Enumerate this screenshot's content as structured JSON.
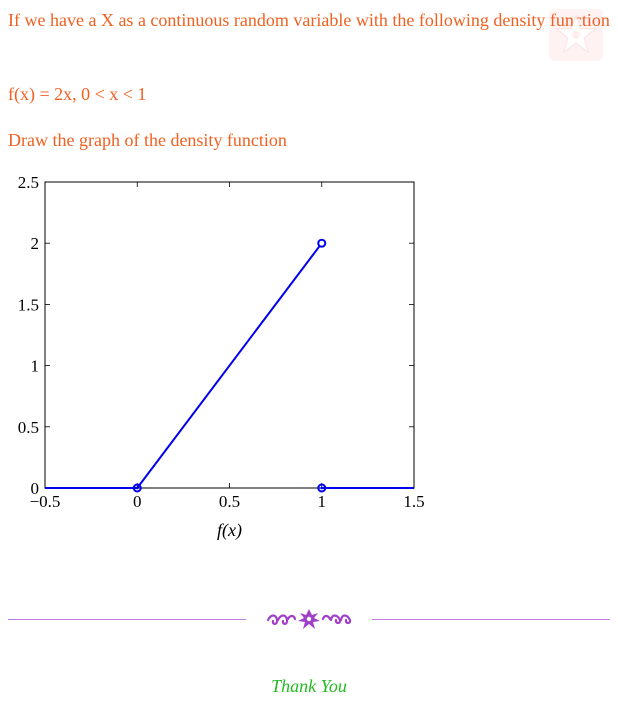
{
  "question": {
    "line1": "If we have a X as a continuous random variable with the following density function",
    "formula": "f(x) = 2x, 0 < x < 1",
    "instruction": "Draw the graph of the density function"
  },
  "footer": {
    "thank_you": "Thank You"
  },
  "colors": {
    "question_text": "#f06020",
    "plot_line": "#0000ee",
    "divider": "#c27ee0",
    "ornament": "#a040c8",
    "thank_you": "#22bb22",
    "logo": "#ff4444"
  },
  "icons": {
    "corner_logo": "faded-red-star-logo-icon",
    "divider_ornament": "purple-swirl-ornament-icon"
  },
  "chart_data": {
    "type": "line",
    "xlabel": "f(x)",
    "ylabel": "",
    "xlim": [
      -0.5,
      1.5
    ],
    "ylim": [
      0,
      2.5
    ],
    "xticks": [
      -0.5,
      0,
      0.5,
      1,
      1.5
    ],
    "xtick_labels": [
      "−0.5",
      "0",
      "0.5",
      "1",
      "1.5"
    ],
    "yticks": [
      0,
      0.5,
      1,
      1.5,
      2,
      2.5
    ],
    "ytick_labels": [
      "0",
      "0.5",
      "1",
      "1.5",
      "2",
      "2.5"
    ],
    "grid": false,
    "series": [
      {
        "segments": [
          [
            [
              -0.5,
              0
            ],
            [
              0,
              0
            ]
          ],
          [
            [
              0,
              0
            ],
            [
              1,
              2
            ]
          ],
          [
            [
              1,
              0
            ],
            [
              1.5,
              0
            ]
          ]
        ],
        "open_markers": [
          [
            1,
            2
          ]
        ],
        "closed_markers": [
          [
            0,
            0
          ],
          [
            1,
            0
          ]
        ]
      }
    ]
  }
}
